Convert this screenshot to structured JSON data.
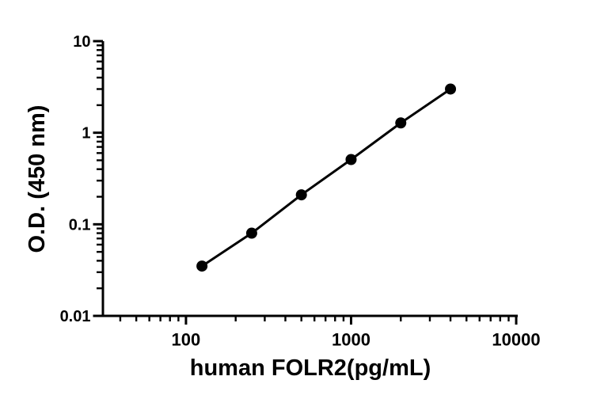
{
  "figure": {
    "background_color": "#ffffff",
    "ink_color": "#000000"
  },
  "chart_data": {
    "type": "scatter",
    "title": "",
    "xlabel": "human FOLR2(pg/mL)",
    "ylabel": "O.D. (450 nm)",
    "x_scale": "log",
    "y_scale": "log",
    "xlim": [
      31.4,
      10220
    ],
    "ylim": [
      0.01,
      10
    ],
    "grid": false,
    "legend": "none",
    "x": [
      125,
      250,
      500,
      1000,
      2000,
      4000
    ],
    "y": [
      0.035,
      0.08,
      0.21,
      0.51,
      1.28,
      3.0
    ],
    "connect_points": true,
    "marker": {
      "shape": "filled-circle",
      "color": "#000000"
    },
    "line": {
      "color": "#000000"
    },
    "x_ticks": {
      "major": [
        100,
        1000,
        10000
      ],
      "major_labels": [
        "100",
        "1000",
        "10000"
      ],
      "minor": [
        40,
        50,
        60,
        70,
        80,
        90,
        200,
        300,
        400,
        500,
        600,
        700,
        800,
        900,
        2000,
        3000,
        4000,
        5000,
        6000,
        7000,
        8000,
        9000
      ]
    },
    "y_ticks": {
      "major": [
        10,
        1,
        0.1,
        0.01
      ],
      "major_labels": [
        "10",
        "1",
        "0.1",
        "0.01"
      ],
      "minor": [
        9,
        8,
        7,
        6,
        5,
        4,
        3,
        2,
        0.9,
        0.8,
        0.7,
        0.6,
        0.5,
        0.4,
        0.3,
        0.2,
        0.09,
        0.08,
        0.07,
        0.06,
        0.05,
        0.04,
        0.03,
        0.02
      ]
    }
  }
}
